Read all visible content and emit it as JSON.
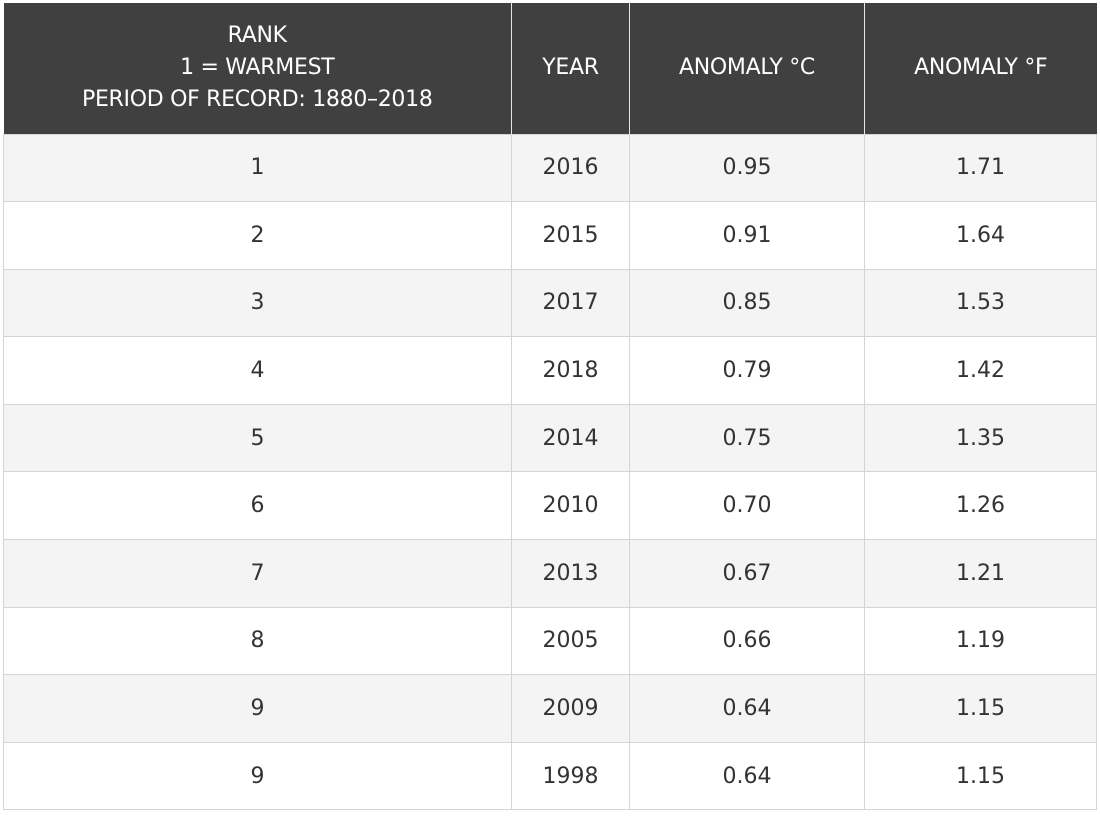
{
  "chart_data": {
    "type": "table",
    "columns": [
      [
        "RANK",
        "1 = WARMEST",
        "PERIOD OF RECORD: 1880–2018"
      ],
      [
        "YEAR"
      ],
      [
        "ANOMALY °C"
      ],
      [
        "ANOMALY °F"
      ]
    ],
    "rows": [
      [
        "1",
        "2016",
        "0.95",
        "1.71"
      ],
      [
        "2",
        "2015",
        "0.91",
        "1.64"
      ],
      [
        "3",
        "2017",
        "0.85",
        "1.53"
      ],
      [
        "4",
        "2018",
        "0.79",
        "1.42"
      ],
      [
        "5",
        "2014",
        "0.75",
        "1.35"
      ],
      [
        "6",
        "2010",
        "0.70",
        "1.26"
      ],
      [
        "7",
        "2013",
        "0.67",
        "1.21"
      ],
      [
        "8",
        "2005",
        "0.66",
        "1.19"
      ],
      [
        "9",
        "2009",
        "0.64",
        "1.15"
      ],
      [
        "9",
        "1998",
        "0.64",
        "1.15"
      ]
    ],
    "colors": {
      "header_bg": "#404040",
      "header_text": "#ffffff",
      "row_stripe": "#f4f4f4",
      "row_plain": "#ffffff",
      "grid": "#d4d4d4",
      "cell_text": "#333333"
    }
  }
}
